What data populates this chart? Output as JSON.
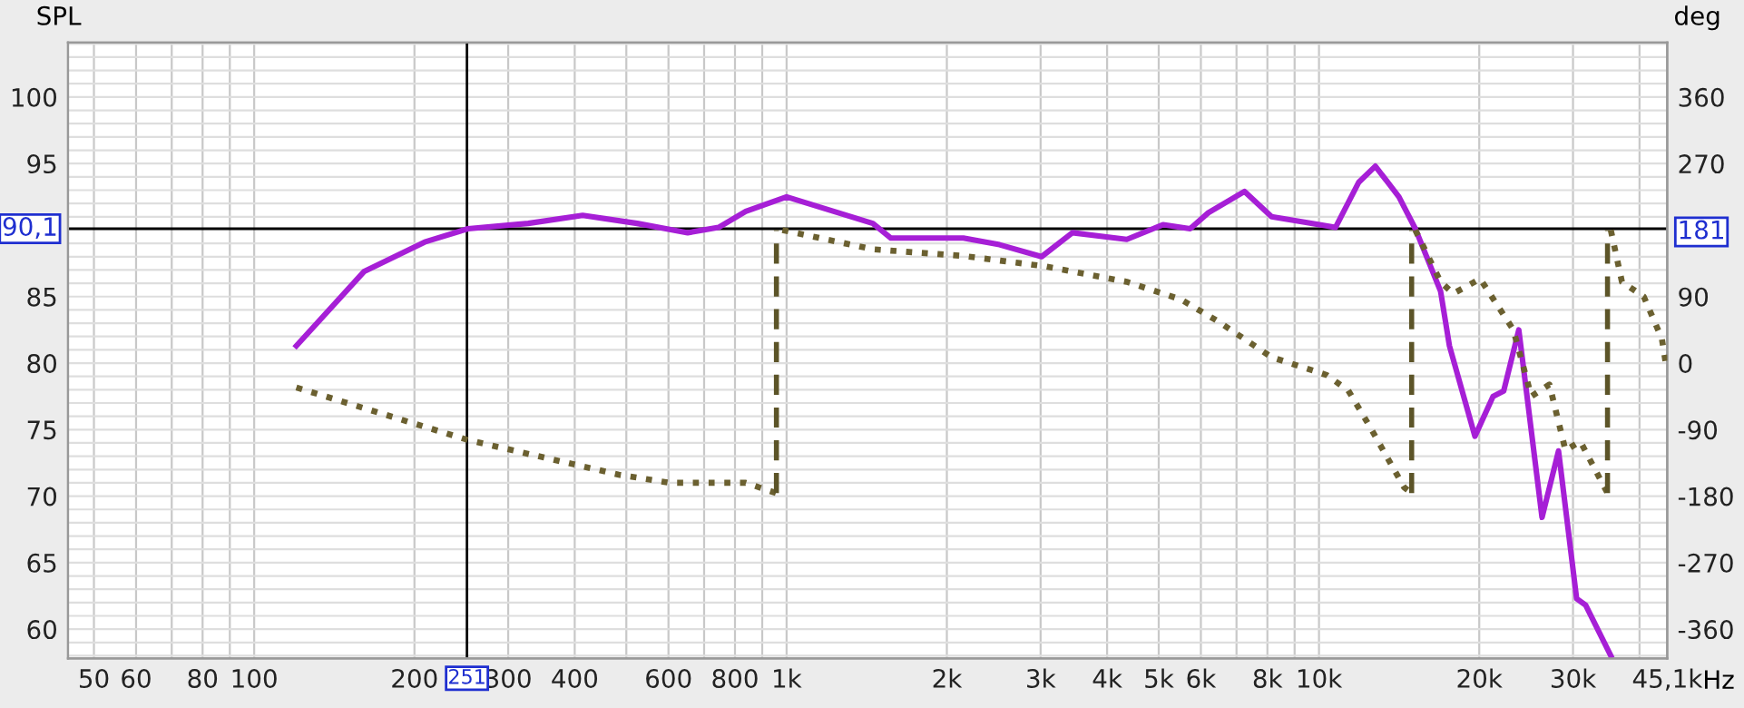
{
  "chart_data": {
    "type": "line",
    "ylabel": "SPL",
    "y2label": "deg",
    "log": "x",
    "grid": true,
    "marker": "none",
    "xlim": [
      44.7,
      45100
    ],
    "ylim": [
      57.8,
      104.1
    ],
    "y2lim": [
      -399.6,
      433.8
    ],
    "xticks": [
      50,
      60,
      {
        "value": 70,
        "label": null
      },
      80,
      {
        "value": 90,
        "label": null
      },
      100,
      200,
      300,
      400,
      {
        "value": 500,
        "label": null
      },
      600,
      {
        "value": 700,
        "label": null
      },
      800,
      {
        "value": 900,
        "label": null
      },
      {
        "value": 1000,
        "label": "1k"
      },
      {
        "value": 2000,
        "label": "2k"
      },
      {
        "value": 3000,
        "label": "3k"
      },
      {
        "value": 4000,
        "label": "4k"
      },
      {
        "value": 5000,
        "label": "5k"
      },
      {
        "value": 6000,
        "label": "6k"
      },
      {
        "value": 7000,
        "label": null
      },
      {
        "value": 8000,
        "label": "8k"
      },
      {
        "value": 9000,
        "label": null
      },
      {
        "value": 10000,
        "label": "10k"
      },
      {
        "value": 20000,
        "label": "20k"
      },
      {
        "value": 30000,
        "label": "30k"
      },
      {
        "value": 40000,
        "label": null
      },
      {
        "value": 45100,
        "label": "45,1k"
      }
    ],
    "xlabel": "Hz",
    "yticks": [
      60,
      65,
      70,
      75,
      80,
      85,
      95,
      100,
      {
        "value": 58,
        "label": null
      },
      {
        "value": 59,
        "label": null
      },
      {
        "value": 61,
        "label": null
      },
      {
        "value": 62,
        "label": null
      },
      {
        "value": 63,
        "label": null
      },
      {
        "value": 64,
        "label": null
      },
      {
        "value": 66,
        "label": null
      },
      {
        "value": 67,
        "label": null
      },
      {
        "value": 68,
        "label": null
      },
      {
        "value": 69,
        "label": null
      },
      {
        "value": 71,
        "label": null
      },
      {
        "value": 72,
        "label": null
      },
      {
        "value": 73,
        "label": null
      },
      {
        "value": 74,
        "label": null
      },
      {
        "value": 76,
        "label": null
      },
      {
        "value": 77,
        "label": null
      },
      {
        "value": 78,
        "label": null
      },
      {
        "value": 79,
        "label": null
      },
      {
        "value": 81,
        "label": null
      },
      {
        "value": 82,
        "label": null
      },
      {
        "value": 83,
        "label": null
      },
      {
        "value": 84,
        "label": null
      },
      {
        "value": 86,
        "label": null
      },
      {
        "value": 87,
        "label": null
      },
      {
        "value": 88,
        "label": null
      },
      {
        "value": 89,
        "label": null
      },
      {
        "value": 91,
        "label": null
      },
      {
        "value": 92,
        "label": null
      },
      {
        "value": 93,
        "label": null
      },
      {
        "value": 94,
        "label": null
      },
      {
        "value": 96,
        "label": null
      },
      {
        "value": 97,
        "label": null
      },
      {
        "value": 98,
        "label": null
      },
      {
        "value": 99,
        "label": null
      },
      {
        "value": 101,
        "label": null
      },
      {
        "value": 102,
        "label": null
      },
      {
        "value": 103,
        "label": null
      },
      {
        "value": 104,
        "label": null
      }
    ],
    "y2ticks": [
      360,
      270,
      181,
      90,
      0,
      -90,
      -180,
      -270,
      -360
    ],
    "ref_lines": [
      {
        "axis": "y",
        "value": 90.1,
        "label": "90,1",
        "color": "#000000"
      },
      {
        "axis": "x",
        "value": 251,
        "label": "251",
        "color": "#000000"
      }
    ],
    "series": [
      {
        "color": "#a61fd6",
        "line_style": "solid",
        "axis": "y",
        "x": [
          120,
          161,
          209,
          252,
          327,
          414,
          524,
          652,
          745,
          838,
          1000,
          1452,
          1570,
          1698,
          2148,
          2512,
          3013,
          3443,
          4355,
          5093,
          5728,
          6197,
          7248,
          8147,
          9390,
          10740,
          11880,
          12760,
          14130,
          15170,
          16920,
          17580,
          19630,
          21230,
          22230,
          23730,
          26240,
          28180,
          30470,
          31700,
          35330
        ],
        "values": [
          81.3,
          86.9,
          89.1,
          90.1,
          90.5,
          91.1,
          90.5,
          89.8,
          90.2,
          91.4,
          92.5,
          90.5,
          89.4,
          89.4,
          89.4,
          88.9,
          88.0,
          89.8,
          89.3,
          90.4,
          90.1,
          91.3,
          92.9,
          91.0,
          90.6,
          90.2,
          93.6,
          94.8,
          92.5,
          90.1,
          85.4,
          81.3,
          74.5,
          77.5,
          77.9,
          82.5,
          68.4,
          73.4,
          62.3,
          61.8,
          58.0
        ]
      },
      {
        "color": "#6b6030",
        "line_style": "dotted",
        "axis": "y2",
        "x": [
          120,
          252,
          484,
          604,
          838,
          957,
          970,
          982,
          1452,
          2148,
          3055,
          4355,
          5506,
          6447,
          8147,
          10330,
          11350,
          12370,
          14450,
          14930,
          15050,
          15170,
          16920,
          17870,
          20080,
          23180,
          25060,
          27090,
          29040,
          30970,
          34830,
          35100,
          35330,
          37070,
          40740,
          44060,
          44800
        ],
        "values": [
          -33,
          -104,
          -151,
          -162,
          -162,
          -176,
          null,
          180,
          154,
          145,
          131,
          110,
          86,
          57,
          8,
          -16,
          -37,
          -82,
          -168,
          -176,
          null,
          180,
          110,
          94,
          114,
          45,
          -45,
          -29,
          -118,
          -106,
          -176,
          null,
          180,
          110,
          90,
          33,
          0
        ]
      },
      {
        "color": "#5c5428",
        "line_style": "dashed",
        "axis": "y2",
        "x": [
          957,
          957,
          1000,
          14930,
          14930,
          15000,
          34830,
          34830
        ],
        "values": [
          -176,
          180,
          null,
          -176,
          180,
          null,
          -176,
          180
        ]
      }
    ]
  }
}
